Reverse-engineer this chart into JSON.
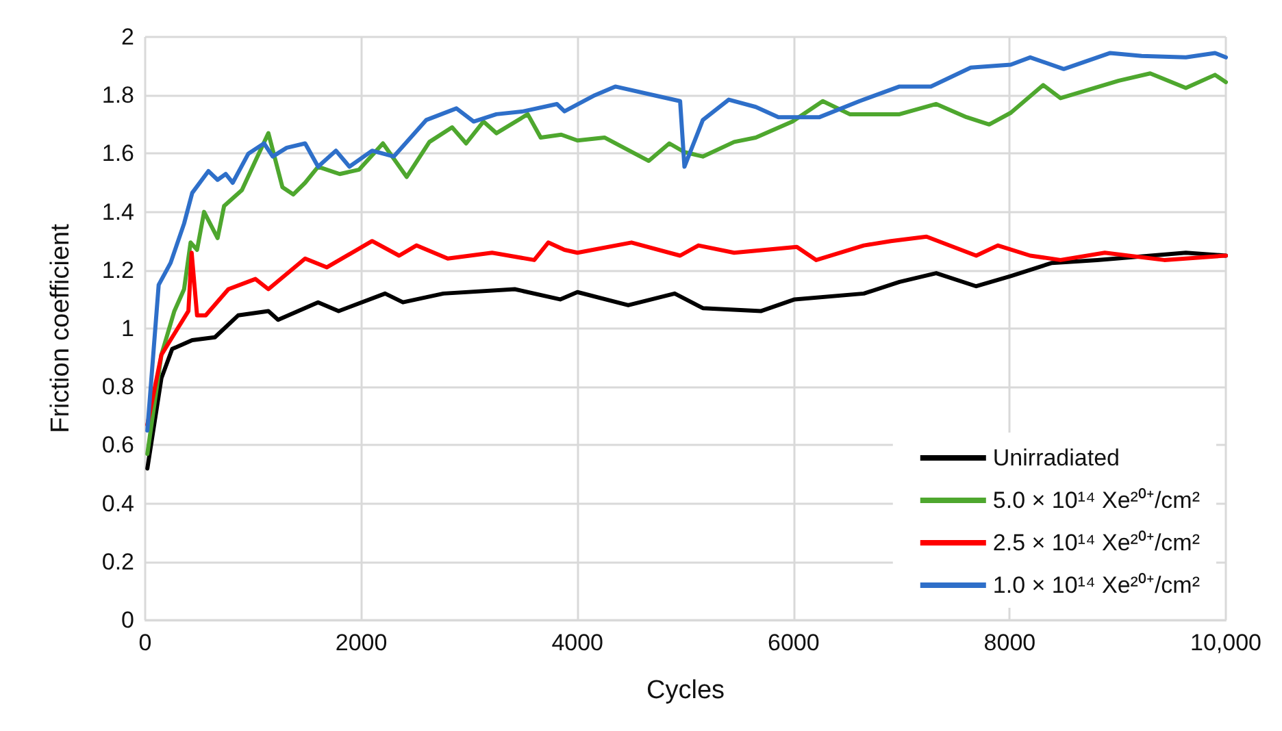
{
  "chart_data": {
    "type": "line",
    "xlabel": "Cycles",
    "ylabel": "Friction coefficient",
    "xlim": [
      0,
      10000
    ],
    "xticks": [
      0,
      2000,
      4000,
      6000,
      8000,
      {
        "value": 10000,
        "label": "10,000"
      }
    ],
    "ylim": [
      0,
      2
    ],
    "yticks": [
      0,
      0.2,
      0.4,
      0.6,
      0.8,
      1,
      1.2,
      1.4,
      1.6,
      1.8,
      2
    ],
    "grid": true,
    "legend": "bottom right",
    "marker": "none",
    "line_style": "solid",
    "series": [
      {
        "name": "Unirradiated",
        "color": "#000000",
        "x": [
          20,
          150,
          250,
          435,
          645,
          860,
          1140,
          1230,
          1600,
          1790,
          2220,
          2385,
          2760,
          3420,
          3840,
          4000,
          4470,
          4900,
          5160,
          5700,
          6010,
          6650,
          6980,
          7320,
          7690,
          8010,
          8390,
          8810,
          9630,
          10000
        ],
        "values": [
          0.52,
          0.83,
          0.93,
          0.96,
          0.97,
          1.045,
          1.06,
          1.03,
          1.09,
          1.06,
          1.12,
          1.09,
          1.12,
          1.135,
          1.1,
          1.125,
          1.08,
          1.12,
          1.07,
          1.06,
          1.1,
          1.12,
          1.16,
          1.19,
          1.145,
          1.18,
          1.225,
          1.235,
          1.26,
          1.25
        ]
      },
      {
        "name": "5.0 × 10¹⁴ Xe²⁰⁺/cm²",
        "color": "#4ea72e",
        "x": [
          20,
          150,
          270,
          360,
          420,
          480,
          545,
          670,
          730,
          895,
          1020,
          1140,
          1270,
          1370,
          1480,
          1600,
          1800,
          1980,
          2200,
          2420,
          2630,
          2840,
          2970,
          3130,
          3250,
          3540,
          3660,
          3850,
          4000,
          4250,
          4660,
          4850,
          4990,
          5160,
          5450,
          5650,
          5990,
          6270,
          6520,
          6980,
          7320,
          7600,
          7810,
          8010,
          8310,
          8470,
          9010,
          9300,
          9630,
          9900,
          10000
        ],
        "values": [
          0.57,
          0.91,
          1.06,
          1.135,
          1.295,
          1.27,
          1.4,
          1.31,
          1.42,
          1.475,
          1.575,
          1.67,
          1.485,
          1.46,
          1.5,
          1.555,
          1.53,
          1.545,
          1.635,
          1.52,
          1.64,
          1.69,
          1.635,
          1.71,
          1.67,
          1.735,
          1.655,
          1.665,
          1.645,
          1.655,
          1.575,
          1.635,
          1.605,
          1.59,
          1.64,
          1.655,
          1.71,
          1.78,
          1.735,
          1.735,
          1.77,
          1.725,
          1.7,
          1.74,
          1.835,
          1.79,
          1.85,
          1.875,
          1.825,
          1.87,
          1.845
        ]
      },
      {
        "name": "2.5 × 10¹⁴ Xe²⁰⁺/cm²",
        "color": "#ff0000",
        "x": [
          20,
          150,
          300,
          400,
          430,
          480,
          560,
          770,
          1020,
          1140,
          1480,
          1680,
          2100,
          2350,
          2510,
          2800,
          3210,
          3600,
          3730,
          3880,
          4000,
          4500,
          4950,
          5120,
          5450,
          6030,
          6210,
          6650,
          6900,
          7230,
          7690,
          7890,
          8190,
          8470,
          8880,
          9430,
          10000
        ],
        "values": [
          0.67,
          0.91,
          1.0,
          1.06,
          1.26,
          1.045,
          1.045,
          1.135,
          1.17,
          1.135,
          1.24,
          1.21,
          1.3,
          1.25,
          1.285,
          1.24,
          1.26,
          1.235,
          1.295,
          1.27,
          1.26,
          1.295,
          1.25,
          1.285,
          1.26,
          1.28,
          1.235,
          1.285,
          1.3,
          1.315,
          1.25,
          1.285,
          1.25,
          1.235,
          1.26,
          1.235,
          1.25
        ]
      },
      {
        "name": "1.0 × 10¹⁴ Xe²⁰⁺/cm²",
        "color": "#2e6fc9",
        "x": [
          20,
          125,
          235,
          360,
          435,
          585,
          670,
          745,
          810,
          955,
          1100,
          1180,
          1310,
          1480,
          1600,
          1765,
          1890,
          2100,
          2300,
          2600,
          2880,
          3040,
          3250,
          3500,
          3810,
          3880,
          4160,
          4350,
          4710,
          4950,
          4990,
          5160,
          5400,
          5650,
          5860,
          6240,
          6610,
          6980,
          7270,
          7640,
          8010,
          8190,
          8500,
          8930,
          9220,
          9630,
          9900,
          10000
        ],
        "values": [
          0.65,
          1.15,
          1.225,
          1.36,
          1.465,
          1.54,
          1.51,
          1.53,
          1.5,
          1.6,
          1.635,
          1.59,
          1.62,
          1.635,
          1.555,
          1.61,
          1.555,
          1.61,
          1.59,
          1.715,
          1.755,
          1.71,
          1.735,
          1.745,
          1.77,
          1.745,
          1.8,
          1.83,
          1.8,
          1.78,
          1.555,
          1.715,
          1.785,
          1.76,
          1.725,
          1.725,
          1.78,
          1.83,
          1.83,
          1.895,
          1.905,
          1.93,
          1.89,
          1.945,
          1.935,
          1.93,
          1.945,
          1.93
        ]
      }
    ]
  }
}
